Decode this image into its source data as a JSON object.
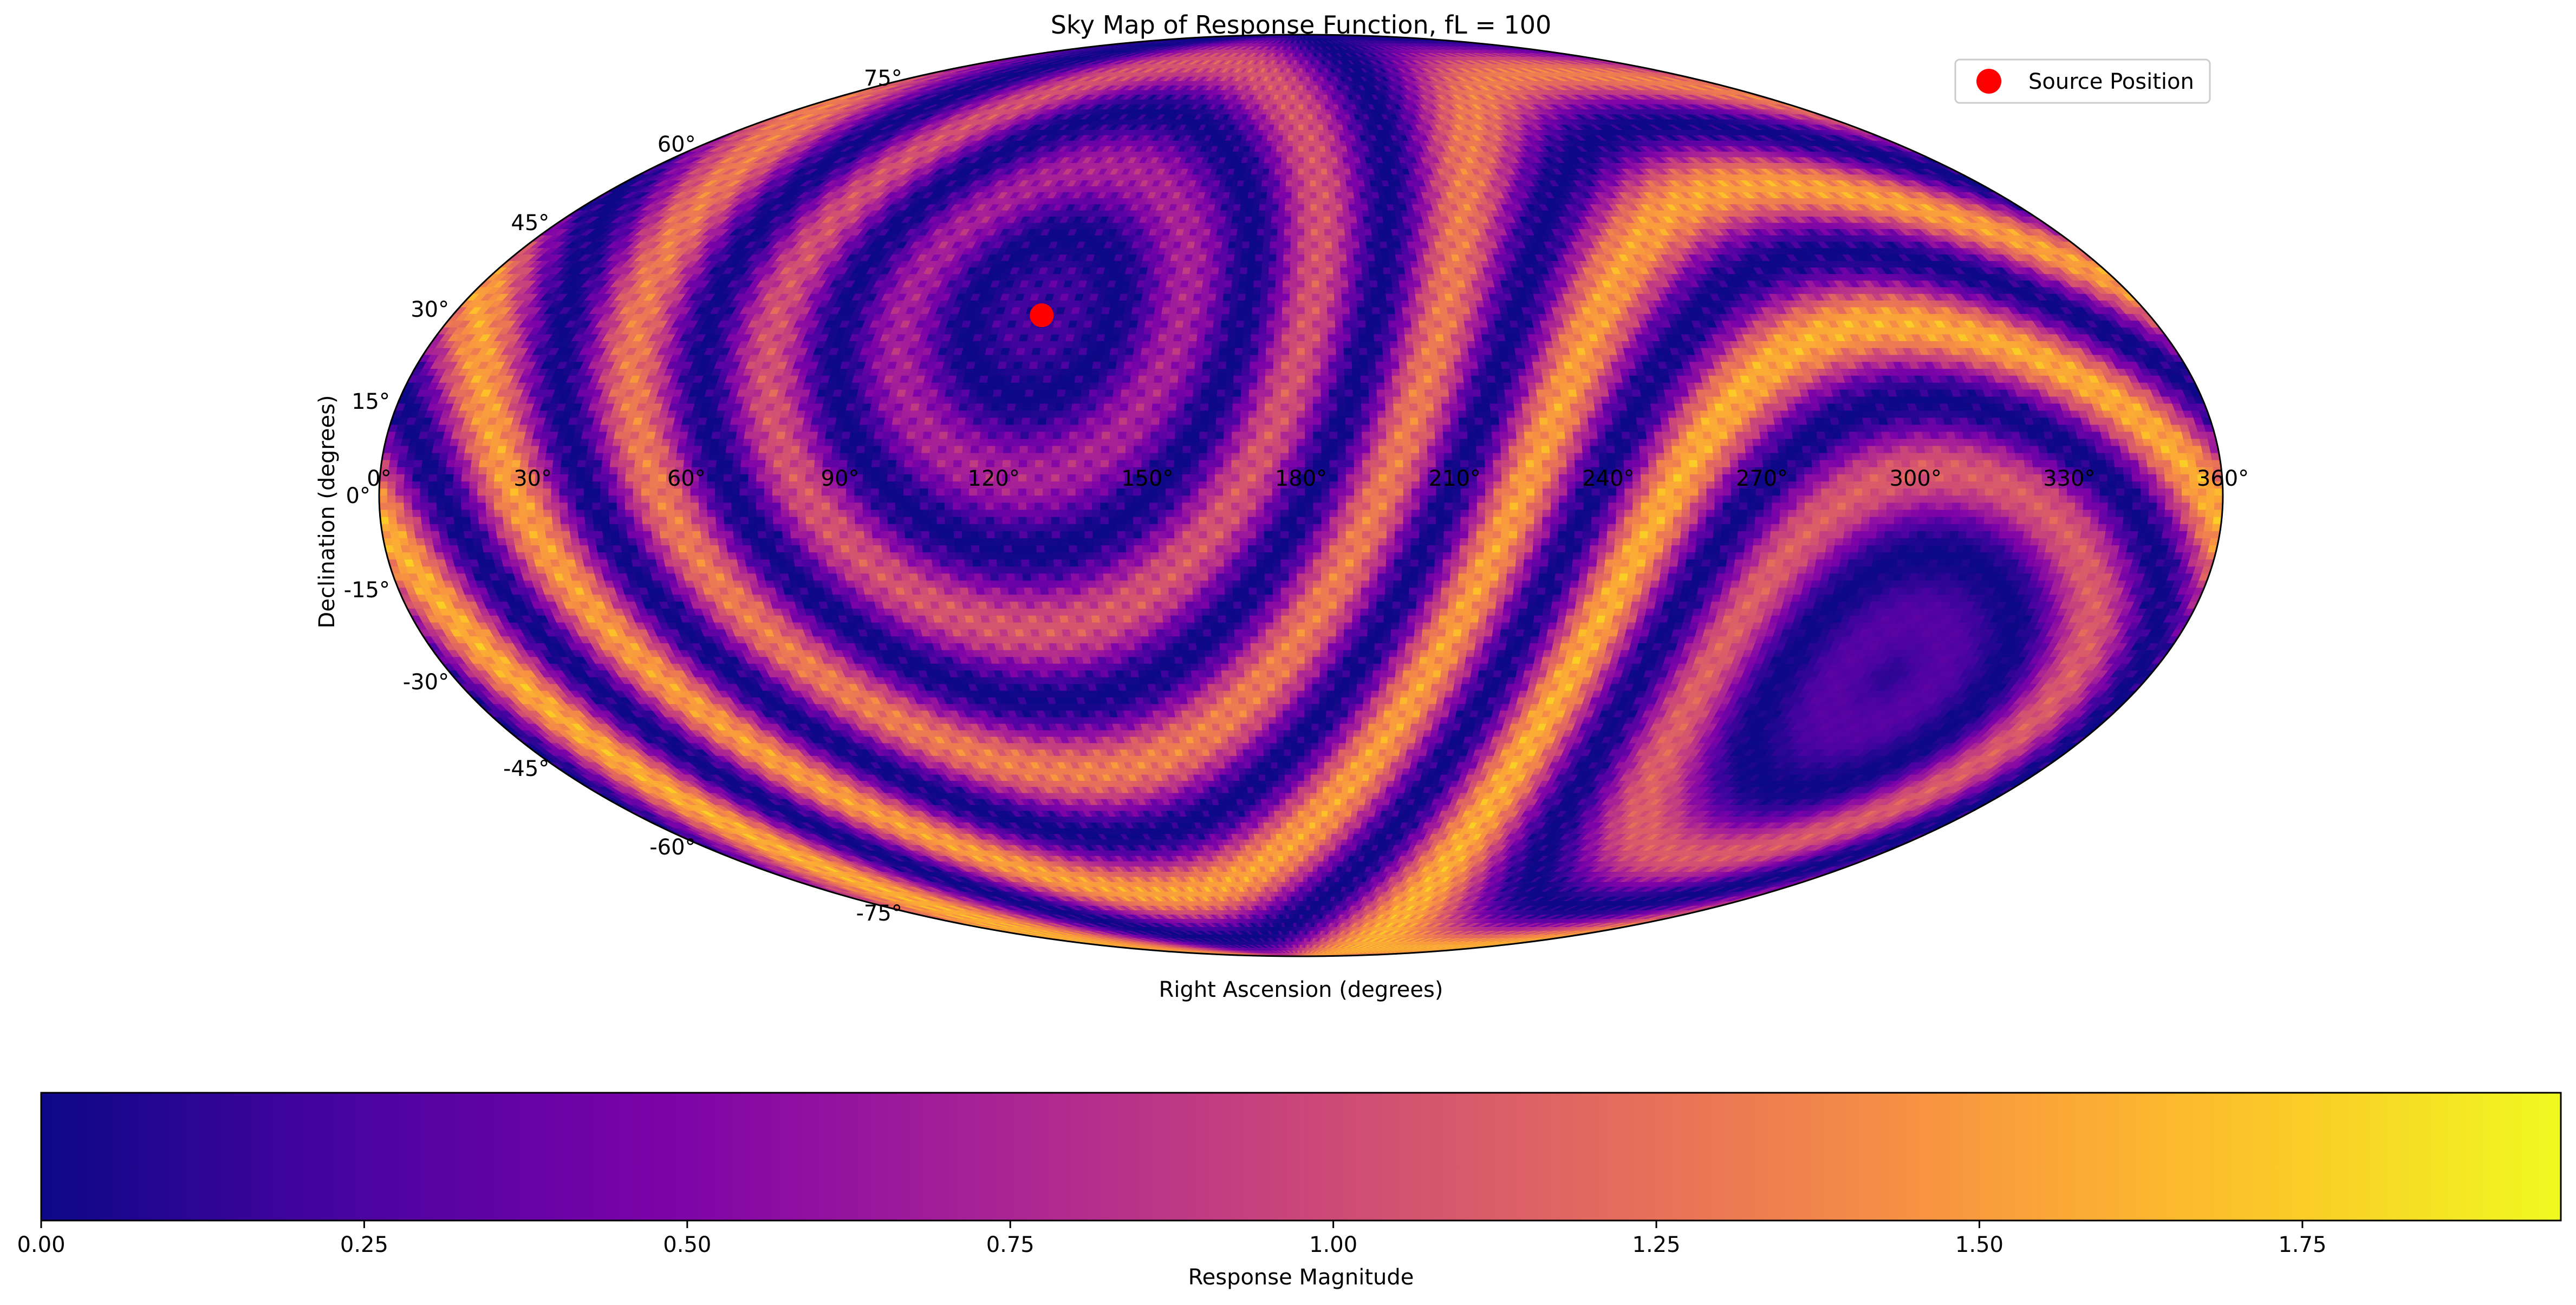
{
  "chart_data": {
    "type": "heatmap",
    "projection": "mollweide",
    "title": "Sky Map of Response Function, fL = 100",
    "xlabel": "Right Ascension (degrees)",
    "ylabel": "Declination (degrees)",
    "x_tick_labels": [
      "0°",
      "30°",
      "60°",
      "90°",
      "120°",
      "150°",
      "180°",
      "210°",
      "240°",
      "270°",
      "300°",
      "330°",
      "360°"
    ],
    "x_tick_values": [
      0,
      30,
      60,
      90,
      120,
      150,
      180,
      210,
      240,
      270,
      300,
      330,
      360
    ],
    "y_tick_labels": [
      "75°",
      "60°",
      "45°",
      "30°",
      "15°",
      "0°",
      "-15°",
      "-30°",
      "-45°",
      "-60°",
      "-75°"
    ],
    "y_tick_values": [
      75,
      60,
      45,
      30,
      15,
      0,
      -15,
      -30,
      -45,
      -60,
      -75
    ],
    "source": {
      "ra": 125,
      "dec": 29,
      "color": "#ff0000",
      "label": "Source Position"
    },
    "legend_position": "top-right",
    "colormap": "plasma",
    "colorbar": {
      "label": "Response Magnitude",
      "range": [
        0,
        1.95
      ],
      "ticks": [
        0,
        0.25,
        0.5,
        0.75,
        1,
        1.25,
        1.5,
        1.75
      ],
      "tick_labels": [
        "0.00",
        "0.25",
        "0.50",
        "0.75",
        "1.00",
        "1.25",
        "1.50",
        "1.75"
      ],
      "orientation": "horizontal",
      "position": "bottom"
    },
    "grid": false
  }
}
